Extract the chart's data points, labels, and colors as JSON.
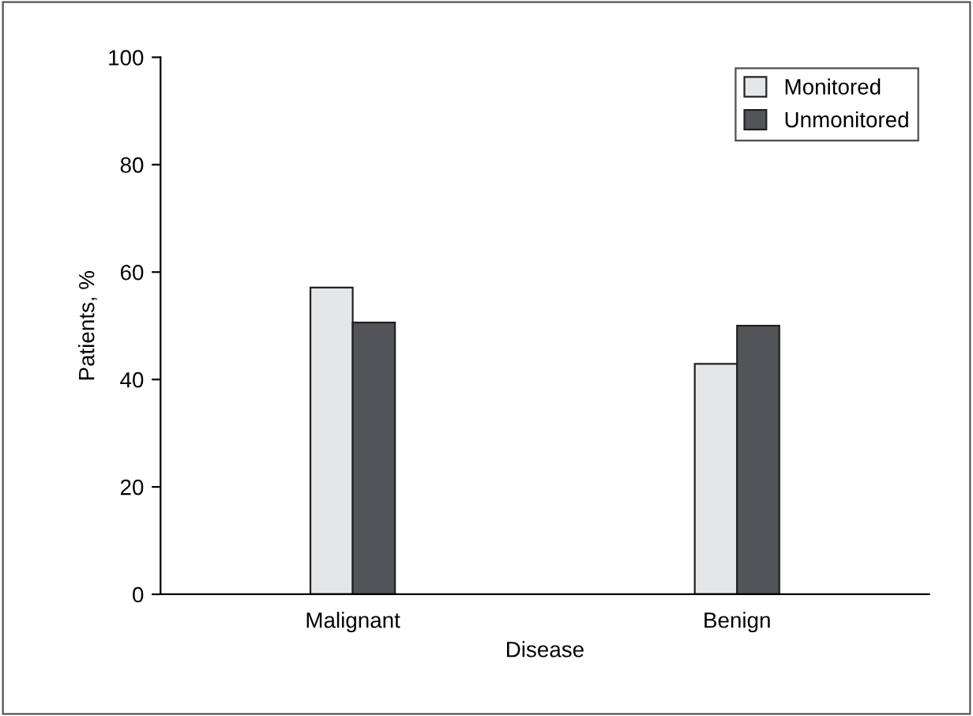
{
  "chart_data": {
    "type": "bar",
    "xlabel": "Disease",
    "ylabel": "Patients, %",
    "categories": [
      "Malignant",
      "Benign"
    ],
    "series": [
      {
        "name": "Monitored",
        "color": "#e5e6e8",
        "values": [
          57.1,
          42.9
        ]
      },
      {
        "name": "Unmonitored",
        "color": "#535457",
        "values": [
          50.6,
          50.0
        ]
      }
    ],
    "ylim": [
      0,
      100
    ],
    "yticks": [
      0,
      20,
      40,
      60,
      80,
      100
    ],
    "grid": false,
    "legend": "top right"
  }
}
